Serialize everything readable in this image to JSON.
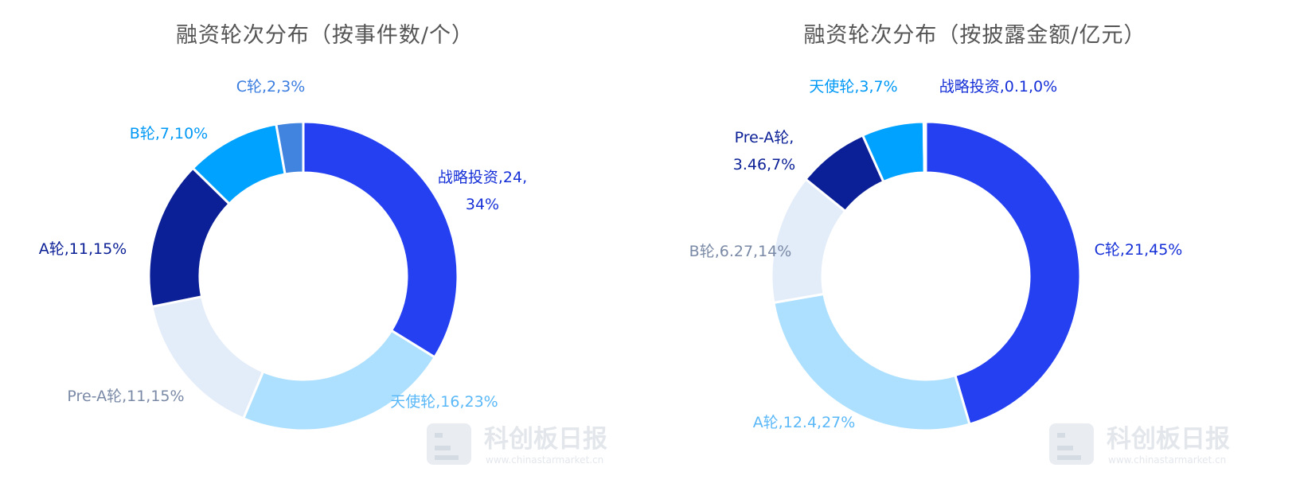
{
  "watermark": {
    "brand": "科创板日报",
    "url": "www.chinastarmarket.cn"
  },
  "chart_data": [
    {
      "type": "pie",
      "donut": true,
      "title": "融资轮次分布（按事件数/个）",
      "slices": [
        {
          "name": "战略投资",
          "value": 24,
          "percent": 34,
          "color": "#2540f0",
          "label": [
            "战略投资,24,",
            "34%"
          ]
        },
        {
          "name": "天使轮",
          "value": 16,
          "percent": 23,
          "color": "#ade0ff",
          "label": [
            "天使轮,16,23%"
          ]
        },
        {
          "name": "Pre-A轮",
          "value": 11,
          "percent": 15,
          "color": "#e3ecf9",
          "label": [
            "Pre-A轮,11,15%"
          ]
        },
        {
          "name": "A轮",
          "value": 11,
          "percent": 15,
          "color": "#0b1f96",
          "label": [
            "A轮,11,15%"
          ]
        },
        {
          "name": "B轮",
          "value": 7,
          "percent": 10,
          "color": "#00a2ff",
          "label": [
            "B轮,7,10%"
          ]
        },
        {
          "name": "C轮",
          "value": 2,
          "percent": 3,
          "color": "#4084e0",
          "label": [
            "C轮,2,3%"
          ]
        }
      ],
      "label_colors": [
        "#1630d8",
        "#5ab8f8",
        "#7a8aa6",
        "#0b1f96",
        "#0099f5",
        "#3a7de0"
      ]
    },
    {
      "type": "pie",
      "donut": true,
      "title": "融资轮次分布（按披露金额/亿元）",
      "slices": [
        {
          "name": "C轮",
          "value": 21,
          "percent": 45,
          "color": "#2540f0",
          "label": [
            "C轮,21,45%"
          ]
        },
        {
          "name": "A轮",
          "value": 12.4,
          "percent": 27,
          "color": "#ade0ff",
          "label": [
            "A轮,12.4,27%"
          ]
        },
        {
          "name": "B轮",
          "value": 6.27,
          "percent": 14,
          "color": "#e3ecf9",
          "label": [
            "B轮,6.27,14%"
          ]
        },
        {
          "name": "Pre-A轮",
          "value": 3.46,
          "percent": 7,
          "color": "#0b1f96",
          "label": [
            "Pre-A轮,",
            "3.46,7%"
          ]
        },
        {
          "name": "天使轮",
          "value": 3,
          "percent": 7,
          "color": "#00a2ff",
          "label": [
            "天使轮,3,7%"
          ]
        },
        {
          "name": "战略投资",
          "value": 0.1,
          "percent": 0,
          "color": "#2540f0",
          "label": [
            "战略投资,0.1,0%"
          ]
        }
      ],
      "label_colors": [
        "#1630d8",
        "#5ab8f8",
        "#7a8aa6",
        "#0b1f96",
        "#0099f5",
        "#1630d8"
      ]
    }
  ]
}
